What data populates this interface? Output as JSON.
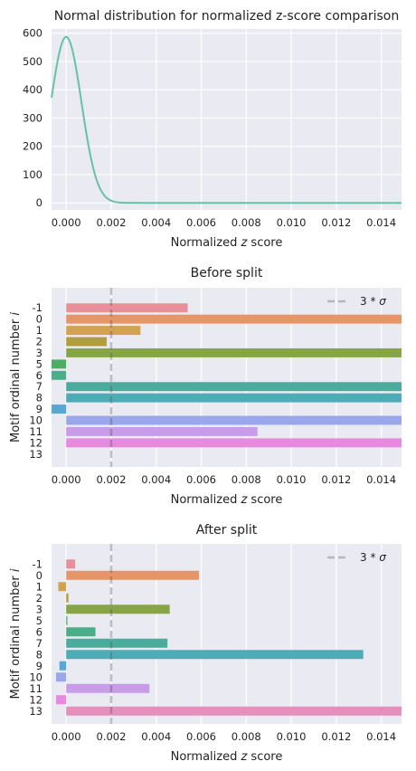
{
  "chart_data": [
    {
      "type": "line",
      "title": "Normal distribution for normalized z-score comparison",
      "xlabel_parts": [
        "Normalized ",
        "z",
        " score"
      ],
      "ylabel": "",
      "xlim": [
        -0.00065,
        0.0149
      ],
      "ylim": [
        -25,
        615
      ],
      "xticks": [
        "0.000",
        "0.002",
        "0.004",
        "0.006",
        "0.008",
        "0.010",
        "0.012",
        "0.014"
      ],
      "yticks": [
        "0",
        "100",
        "200",
        "300",
        "400",
        "500",
        "600"
      ],
      "line_color": "#66c2a5",
      "curve": {
        "mean": 0.0,
        "std": 0.00068,
        "peak": 587
      },
      "grid": true
    },
    {
      "type": "bar",
      "orientation": "horizontal",
      "title": "Before split",
      "xlabel_parts": [
        "Normalized ",
        "z",
        " score"
      ],
      "ylabel_parts": [
        "Motif ordinal number ",
        "i"
      ],
      "xlim": [
        -0.00065,
        0.0149
      ],
      "xticks": [
        "0.000",
        "0.002",
        "0.004",
        "0.006",
        "0.008",
        "0.010",
        "0.012",
        "0.014"
      ],
      "categories": [
        "-1",
        "0",
        "1",
        "2",
        "3",
        "5",
        "6",
        "7",
        "8",
        "9",
        "10",
        "11",
        "12",
        "13"
      ],
      "values": [
        0.0054,
        0.0149,
        0.0033,
        0.0018,
        0.0149,
        -0.0007,
        -0.0007,
        0.0149,
        0.0149,
        -0.0007,
        0.0149,
        0.0085,
        0.0149,
        0.0
      ],
      "colors": [
        "#e8909a",
        "#e59567",
        "#d2a252",
        "#b39e3e",
        "#87a547",
        "#4aae63",
        "#4aaf88",
        "#4aac9c",
        "#4dacb6",
        "#58a6d6",
        "#9aa8eb",
        "#c89ce9",
        "#e689df",
        "#e58fbd"
      ],
      "reference_line": {
        "value": 0.002,
        "label_parts": [
          "3",
          " * ",
          "σ"
        ]
      },
      "legend": "top-right",
      "grid": true
    },
    {
      "type": "bar",
      "orientation": "horizontal",
      "title": "After split",
      "xlabel_parts": [
        "Normalized ",
        "z",
        " score"
      ],
      "ylabel_parts": [
        "Motif ordinal number ",
        "i"
      ],
      "xlim": [
        -0.00065,
        0.0149
      ],
      "xticks": [
        "0.000",
        "0.002",
        "0.004",
        "0.006",
        "0.008",
        "0.010",
        "0.012",
        "0.014"
      ],
      "categories": [
        "-1",
        "0",
        "1",
        "2",
        "3",
        "5",
        "6",
        "7",
        "8",
        "9",
        "10",
        "11",
        "12",
        "13"
      ],
      "values": [
        0.0004,
        0.0059,
        -0.00035,
        0.0001,
        0.0046,
        5e-05,
        0.0013,
        0.0045,
        0.0132,
        -0.0003,
        -0.00045,
        0.0037,
        -0.00045,
        0.0149
      ],
      "colors": [
        "#e8909a",
        "#e59567",
        "#d2a252",
        "#b39e3e",
        "#87a547",
        "#4aae63",
        "#4aaf88",
        "#4aac9c",
        "#4dacb6",
        "#58a6d6",
        "#9aa8eb",
        "#c89ce9",
        "#e689df",
        "#e58fbd"
      ],
      "reference_line": {
        "value": 0.002,
        "label_parts": [
          "3",
          " * ",
          "σ"
        ]
      },
      "legend": "top-right",
      "grid": true
    }
  ]
}
